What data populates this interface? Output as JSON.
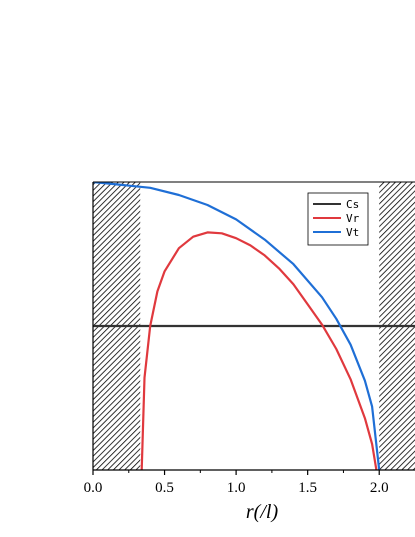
{
  "chart_data": {
    "type": "line",
    "title": "",
    "xlabel": "r(/l)",
    "ylabel": "",
    "xlim": [
      0.0,
      2.25
    ],
    "ylim": [
      0.0,
      1.0
    ],
    "x_ticks": [
      0.0,
      0.5,
      1.0,
      1.5,
      2.0
    ],
    "x_tick_labels": [
      "0.0",
      "0.5",
      "1.0",
      "1.5",
      "2.0"
    ],
    "grid": false,
    "legend_position": "top-right",
    "hatched_regions": [
      [
        0.0,
        0.33
      ],
      [
        2.0,
        2.25
      ]
    ],
    "series": [
      {
        "name": "Cs",
        "color": "#333333",
        "x": [
          0.0,
          2.25
        ],
        "y": [
          0.5,
          0.5
        ]
      },
      {
        "name": "Vr",
        "color": "#e0393e",
        "x": [
          0.34,
          0.36,
          0.4,
          0.45,
          0.5,
          0.6,
          0.7,
          0.8,
          0.9,
          1.0,
          1.1,
          1.2,
          1.3,
          1.4,
          1.5,
          1.6,
          1.7,
          1.8,
          1.9,
          1.95,
          1.98
        ],
        "y": [
          0.0,
          0.32,
          0.5,
          0.62,
          0.69,
          0.77,
          0.81,
          0.825,
          0.822,
          0.805,
          0.78,
          0.745,
          0.7,
          0.645,
          0.575,
          0.505,
          0.42,
          0.315,
          0.18,
          0.09,
          0.0
        ]
      },
      {
        "name": "Vt",
        "color": "#1f6fd6",
        "x": [
          0.0,
          0.2,
          0.4,
          0.6,
          0.8,
          1.0,
          1.2,
          1.4,
          1.6,
          1.7,
          1.8,
          1.9,
          1.95,
          2.0
        ],
        "y": [
          1.0,
          0.99,
          0.98,
          0.955,
          0.92,
          0.87,
          0.8,
          0.715,
          0.6,
          0.525,
          0.435,
          0.31,
          0.22,
          0.0
        ]
      }
    ]
  }
}
